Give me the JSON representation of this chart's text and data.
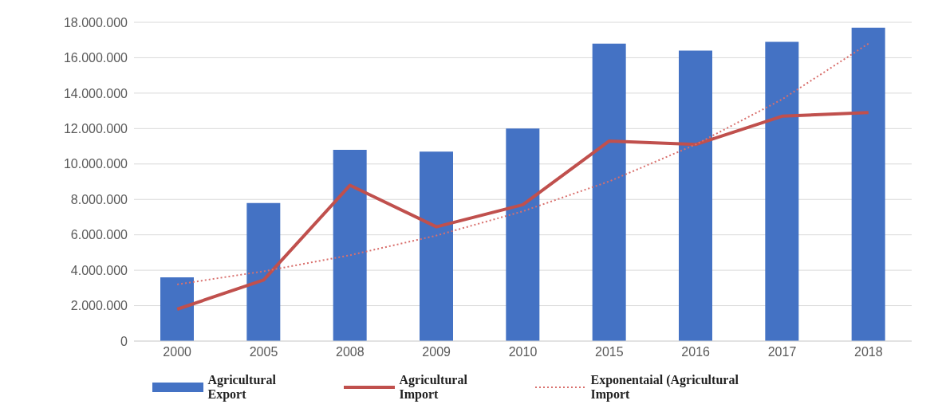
{
  "chart_data": {
    "type": "bar",
    "categories": [
      "2000",
      "2005",
      "2008",
      "2009",
      "2010",
      "2015",
      "2016",
      "2017",
      "2018"
    ],
    "series": [
      {
        "name": "Agricultural Export",
        "color": "#4472c4",
        "values": [
          3600000,
          7800000,
          10800000,
          10700000,
          12000000,
          16800000,
          16400000,
          16900000,
          17700000
        ]
      },
      {
        "name": "Agricultural Import",
        "type": "line",
        "color": "#c0504d",
        "line_style": "solid",
        "values": [
          1800000,
          3450000,
          8800000,
          6450000,
          7700000,
          11300000,
          11100000,
          12700000,
          12900000
        ]
      },
      {
        "name": "Exponentaial (Agricultural Import",
        "type": "line",
        "color": "#d9706d",
        "line_style": "dotted",
        "values": [
          3200000,
          3940000,
          4850000,
          5960000,
          7330000,
          9020000,
          11100000,
          13650000,
          16800000
        ]
      }
    ],
    "ylim": [
      0,
      18000000
    ],
    "yticks": [
      {
        "value": 0,
        "label": "0"
      },
      {
        "value": 2000000,
        "label": "2.000.000"
      },
      {
        "value": 4000000,
        "label": "4.000.000"
      },
      {
        "value": 6000000,
        "label": "6.000.000"
      },
      {
        "value": 8000000,
        "label": "8.000.000"
      },
      {
        "value": 10000000,
        "label": "10.000.000"
      },
      {
        "value": 12000000,
        "label": "12.000.000"
      },
      {
        "value": 14000000,
        "label": "14.000.000"
      },
      {
        "value": 16000000,
        "label": "16.000.000"
      },
      {
        "value": 18000000,
        "label": "18.000.000"
      }
    ],
    "grid": "y",
    "legend": "bottom",
    "marker": "none"
  }
}
